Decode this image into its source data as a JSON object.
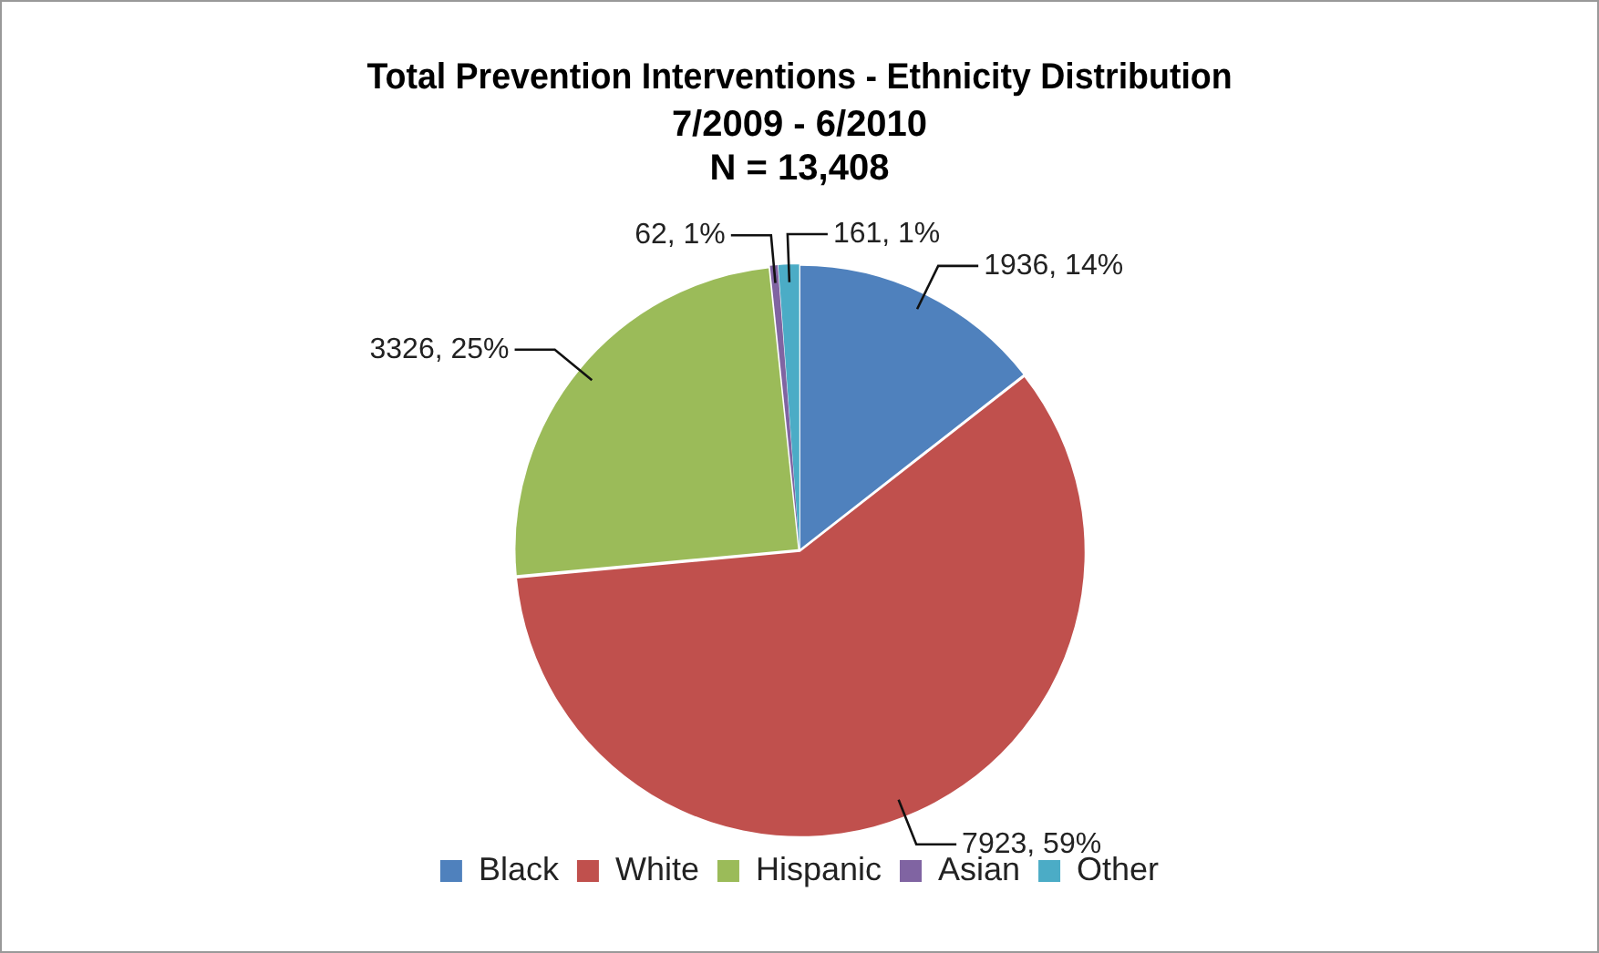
{
  "chart_data": {
    "type": "pie",
    "title": "Total Prevention Interventions - Ethnicity Distribution",
    "subtitle": "7/2009 - 6/2010",
    "annotations": [
      "N = 13,408"
    ],
    "categories": [
      "Black",
      "White",
      "Hispanic",
      "Asian",
      "Other"
    ],
    "values": [
      1936,
      7923,
      3326,
      62,
      161
    ],
    "colors": [
      "#4f81bd",
      "#c0504d",
      "#9bbb59",
      "#8064a2",
      "#4bacc6"
    ],
    "value_labels": [
      "1936, 14%",
      "7923, 59%",
      "3326, 25%",
      "62, 1%",
      "161, 1%"
    ],
    "legend": "bottom"
  }
}
